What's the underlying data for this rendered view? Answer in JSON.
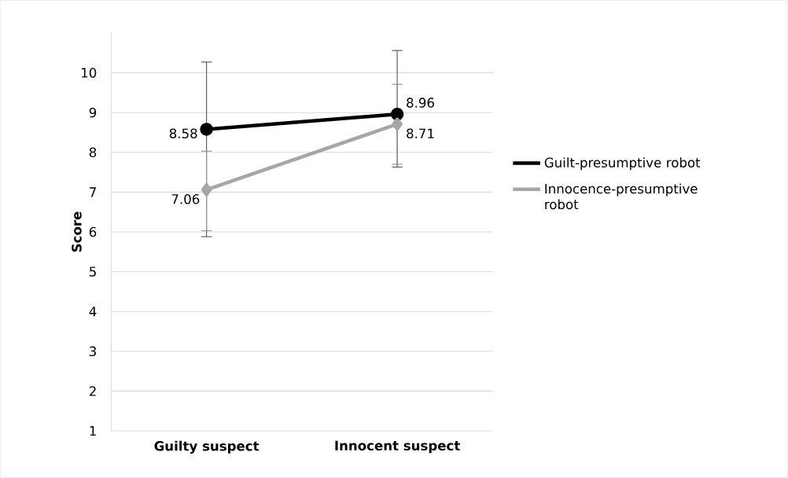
{
  "chart_data": {
    "type": "line",
    "ylabel": "Score",
    "categories": [
      "Guilty suspect",
      "Innocent suspect"
    ],
    "series": [
      {
        "name": "Guilt-presumptive robot",
        "color": "#000000",
        "marker": "circle",
        "values": [
          8.58,
          8.96
        ],
        "errors": [
          [
            5.88,
            10.27
          ],
          [
            7.63,
            10.56
          ]
        ]
      },
      {
        "name": "Innocence-presumptive robot",
        "color": "#a6a6a6",
        "marker": "diamond",
        "values": [
          7.06,
          8.71
        ],
        "errors": [
          [
            6.03,
            8.03
          ],
          [
            7.7,
            9.71
          ]
        ]
      }
    ],
    "ylim": [
      1,
      11
    ],
    "yticks": [
      1,
      2,
      3,
      4,
      5,
      6,
      7,
      8,
      9,
      10
    ],
    "grid": "y",
    "legend": "right",
    "data_labels": true
  }
}
